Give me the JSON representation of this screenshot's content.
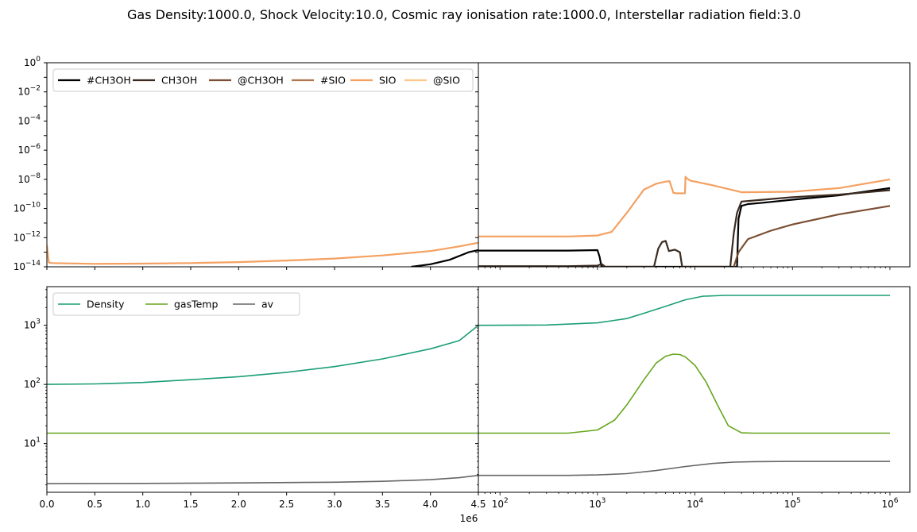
{
  "title": "Gas Density:1000.0, Shock Velocity:10.0, Cosmic ray ionisation rate:1000.0, Interstellar radiation field:3.0",
  "colors": {
    "#CH3OH": "#000000",
    "CH3OH": "#3b2a20",
    "@CH3OH": "#7a4f33",
    "#SIO": "#b07750",
    "SIO": "#f4a060",
    "@SIO": "#fdc88a",
    "Density": "#1b9e77",
    "gasTemp": "#66a61e",
    "av": "#666666"
  },
  "chart_data": [
    {
      "type": "line",
      "panel": "top-left",
      "xscale": "linear",
      "yscale": "log",
      "xlim": [
        0,
        4500000
      ],
      "ylim": [
        1e-14,
        1
      ],
      "yticks": [
        "10^0",
        "10^-2",
        "10^-4",
        "10^-6",
        "10^-8",
        "10^-10",
        "10^-12",
        "10^-14"
      ],
      "legend": {
        "placement": "upper-left",
        "columns": 6,
        "entries": [
          "#CH3OH",
          "CH3OH",
          "@CH3OH",
          "#SIO",
          "SIO",
          "@SIO"
        ]
      },
      "series": [
        {
          "name": "SIO",
          "x": [
            0,
            20000,
            50000,
            500000,
            1000000,
            1500000,
            2000000,
            2500000,
            3000000,
            3500000,
            4000000,
            4300000,
            4500000
          ],
          "y": [
            3e-13,
            2e-14,
            1.8e-14,
            1.6e-14,
            1.65e-14,
            1.8e-14,
            2.1e-14,
            2.7e-14,
            3.7e-14,
            6e-14,
            1.2e-13,
            2.5e-13,
            4.5e-13
          ]
        },
        {
          "name": "#CH3OH",
          "x": [
            3800000,
            4000000,
            4200000,
            4400000,
            4500000
          ],
          "y": [
            1e-14,
            1.5e-14,
            3e-14,
            1e-13,
            1.4e-13
          ]
        }
      ]
    },
    {
      "type": "line",
      "panel": "top-right",
      "xscale": "log",
      "yscale": "log",
      "xlim": [
        60,
        1600000
      ],
      "ylim": [
        1e-14,
        1
      ],
      "series": [
        {
          "name": "SIO",
          "x": [
            60,
            500,
            1000,
            1400,
            2000,
            3000,
            4000,
            5000,
            5500,
            6000,
            6500,
            7900,
            8000,
            8200,
            9000,
            15000,
            30000,
            100000,
            300000,
            1000000
          ],
          "y": [
            1.2e-12,
            1.2e-12,
            1.4e-12,
            2.5e-12,
            5e-11,
            2e-09,
            5e-09,
            7e-09,
            7.5e-09,
            1.2e-09,
            1.1e-09,
            1.1e-09,
            1.5e-08,
            1.2e-08,
            8e-09,
            4e-09,
            1.3e-09,
            1.4e-09,
            2.5e-09,
            1e-08
          ]
        },
        {
          "name": "#CH3OH",
          "x": [
            60,
            500,
            1000,
            1050,
            1100,
            27000,
            28000,
            30000,
            35000,
            50000,
            100000,
            300000,
            1000000
          ],
          "y": [
            1.3e-13,
            1.3e-13,
            1.4e-13,
            5e-14,
            1e-14,
            1e-14,
            2e-11,
            1.5e-10,
            2e-10,
            2.5e-10,
            4e-10,
            8e-10,
            2.5e-09
          ]
        },
        {
          "name": "CH3OH",
          "x": [
            60,
            500,
            1000,
            1100,
            1200,
            3800,
            4200,
            4600,
            5000,
            5400,
            6200,
            7000,
            7400,
            23000,
            25000,
            27000,
            30000,
            50000,
            100000,
            300000,
            1000000
          ],
          "y": [
            1.1e-14,
            1.1e-14,
            1.2e-14,
            1.6e-14,
            1e-14,
            1e-14,
            1.8e-13,
            5e-13,
            6e-13,
            1.2e-13,
            1.5e-13,
            1e-13,
            1e-14,
            1e-14,
            2e-12,
            5e-11,
            3e-10,
            4e-10,
            6e-10,
            9e-10,
            1.8e-09
          ]
        },
        {
          "name": "@CH3OH",
          "x": [
            25000,
            28000,
            35000,
            60000,
            100000,
            300000,
            1000000
          ],
          "y": [
            1e-14,
            1e-13,
            8e-13,
            3e-12,
            8e-12,
            4e-11,
            1.5e-10
          ]
        }
      ]
    },
    {
      "type": "line",
      "panel": "bottom-left",
      "xscale": "linear",
      "yscale": "log",
      "xlim": [
        0,
        4500000
      ],
      "ylim": [
        1.5,
        4500
      ],
      "xticks": [
        "0.0",
        "0.5",
        "1.0",
        "1.5",
        "2.0",
        "2.5",
        "3.0",
        "3.5",
        "4.0",
        "4.5"
      ],
      "xtick_values": [
        0,
        500000,
        1000000,
        1500000,
        2000000,
        2500000,
        3000000,
        3500000,
        4000000,
        4500000
      ],
      "x_offset_label": "1e6",
      "yticks": [
        "10^3",
        "10^2",
        "10^1"
      ],
      "legend": {
        "placement": "upper-left",
        "columns": 3,
        "entries": [
          "Density",
          "gasTemp",
          "av"
        ]
      },
      "series": [
        {
          "name": "Density",
          "x": [
            0,
            500000,
            1000000,
            1500000,
            2000000,
            2500000,
            3000000,
            3500000,
            4000000,
            4300000,
            4500000
          ],
          "y": [
            100,
            102,
            108,
            120,
            135,
            160,
            200,
            270,
            400,
            550,
            1000
          ]
        },
        {
          "name": "gasTemp",
          "x": [
            0,
            4500000
          ],
          "y": [
            15,
            15
          ]
        },
        {
          "name": "av",
          "x": [
            0,
            1000000,
            2000000,
            3000000,
            3500000,
            4000000,
            4300000,
            4500000
          ],
          "y": [
            2.1,
            2.12,
            2.16,
            2.22,
            2.3,
            2.45,
            2.65,
            2.9
          ]
        }
      ]
    },
    {
      "type": "line",
      "panel": "bottom-right",
      "xscale": "log",
      "yscale": "log",
      "xlim": [
        60,
        1600000
      ],
      "ylim": [
        1.5,
        4500
      ],
      "xticks": [
        "10^2",
        "10^3",
        "10^4",
        "10^5",
        "10^6"
      ],
      "xtick_values": [
        100,
        1000,
        10000,
        100000,
        1000000
      ],
      "series": [
        {
          "name": "Density",
          "x": [
            60,
            300,
            1000,
            2000,
            3000,
            5000,
            8000,
            12000,
            20000,
            40000,
            100000,
            1000000
          ],
          "y": [
            1000,
            1010,
            1100,
            1300,
            1600,
            2100,
            2700,
            3100,
            3200,
            3200,
            3200,
            3200
          ]
        },
        {
          "name": "gasTemp",
          "x": [
            60,
            500,
            1000,
            1500,
            2000,
            3000,
            4000,
            5000,
            6000,
            7000,
            8000,
            10000,
            13000,
            17000,
            22000,
            30000,
            40000,
            100000,
            1000000
          ],
          "y": [
            15,
            15,
            17,
            25,
            45,
            120,
            230,
            300,
            325,
            320,
            290,
            210,
            110,
            45,
            20,
            15.2,
            15,
            15,
            15
          ]
        },
        {
          "name": "av",
          "x": [
            60,
            500,
            1000,
            2000,
            4000,
            8000,
            15000,
            25000,
            40000,
            100000,
            1000000
          ],
          "y": [
            2.9,
            2.9,
            2.95,
            3.1,
            3.5,
            4.1,
            4.6,
            4.85,
            4.95,
            5.0,
            5.0
          ]
        }
      ]
    }
  ]
}
